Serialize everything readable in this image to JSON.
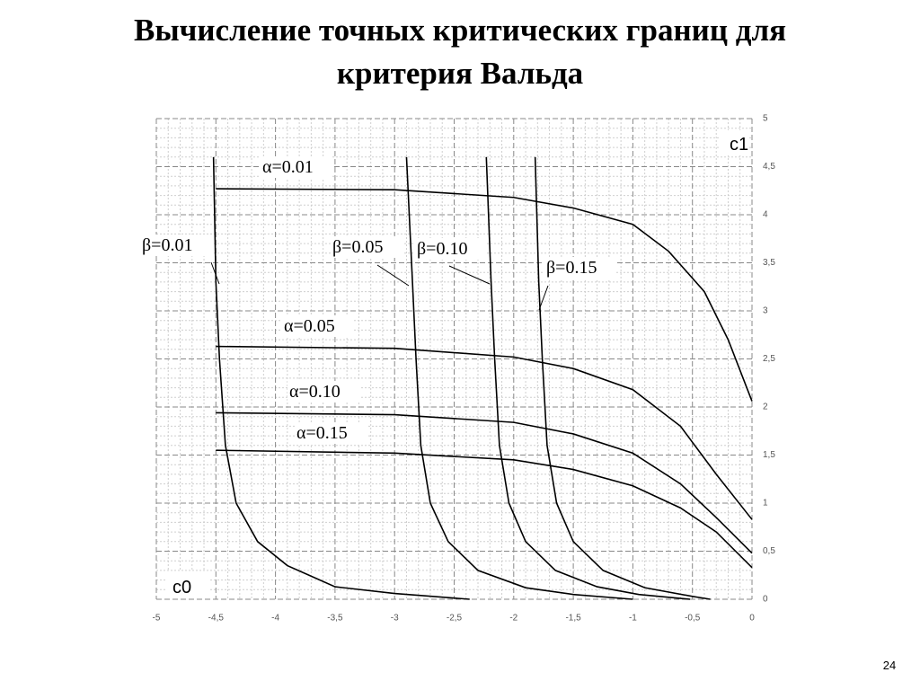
{
  "slide_title": [
    "Вычисление точных критических границ для",
    "критерия Вальда"
  ],
  "page_number": "24",
  "chart_data": {
    "type": "line",
    "xlabel": "c0",
    "ylabel": "c1",
    "xlim": [
      -5,
      0
    ],
    "ylim": [
      0,
      5
    ],
    "xticks": [
      -5,
      {
        "value": -4.5,
        "label": "-4,5"
      },
      -4,
      {
        "value": -3.5,
        "label": "-3,5"
      },
      -3,
      {
        "value": -2.5,
        "label": "-2,5"
      },
      -2,
      {
        "value": -1.5,
        "label": "-1,5"
      },
      -1,
      {
        "value": -0.5,
        "label": "-0,5"
      },
      0
    ],
    "yticks": [
      0,
      {
        "value": 0.5,
        "label": "0,5"
      },
      1,
      {
        "value": 1.5,
        "label": "1,5"
      },
      2,
      {
        "value": 2.5,
        "label": "2,5"
      },
      3,
      {
        "value": 3.5,
        "label": "3,5"
      },
      4,
      {
        "value": 4.5,
        "label": "4,5"
      },
      5
    ],
    "grid": true,
    "minor_grid": true,
    "series": [
      {
        "name": "α=0.01",
        "color": "#000000",
        "x": [
          -4.5,
          -3,
          -2,
          -1.5,
          -1,
          -0.7,
          -0.4,
          -0.2,
          0
        ],
        "values": [
          4.27,
          4.26,
          4.18,
          4.07,
          3.9,
          3.62,
          3.2,
          2.7,
          2.06
        ]
      },
      {
        "name": "α=0.05",
        "color": "#000000",
        "x": [
          -4.5,
          -3,
          -2,
          -1.5,
          -1,
          -0.6,
          -0.3,
          0
        ],
        "values": [
          2.63,
          2.61,
          2.52,
          2.4,
          2.18,
          1.8,
          1.3,
          0.83
        ]
      },
      {
        "name": "α=0.10",
        "color": "#000000",
        "x": [
          -4.5,
          -3,
          -2,
          -1.5,
          -1,
          -0.6,
          -0.3,
          0
        ],
        "values": [
          1.94,
          1.92,
          1.84,
          1.72,
          1.52,
          1.2,
          0.85,
          0.48
        ]
      },
      {
        "name": "α=0.15",
        "color": "#000000",
        "x": [
          -4.5,
          -3,
          -2,
          -1.5,
          -1,
          -0.6,
          -0.3,
          0
        ],
        "values": [
          1.55,
          1.52,
          1.45,
          1.35,
          1.18,
          0.95,
          0.7,
          0.33
        ]
      },
      {
        "name": "β=0.01",
        "color": "#000000",
        "x": [
          -4.52,
          -4.5,
          -4.47,
          -4.42,
          -4.33,
          -4.15,
          -3.9,
          -3.5,
          -3,
          -2.37
        ],
        "values": [
          4.6,
          3.3,
          2.5,
          1.6,
          1.0,
          0.6,
          0.35,
          0.13,
          0.06,
          0
        ]
      },
      {
        "name": "β=0.05",
        "color": "#000000",
        "x": [
          -2.9,
          -2.85,
          -2.82,
          -2.78,
          -2.7,
          -2.55,
          -2.3,
          -1.9,
          -1.5,
          -1.0
        ],
        "values": [
          4.6,
          3.3,
          2.5,
          1.6,
          1.0,
          0.6,
          0.3,
          0.12,
          0.05,
          0
        ]
      },
      {
        "name": "β=0.10",
        "color": "#000000",
        "x": [
          -2.23,
          -2.19,
          -2.16,
          -2.12,
          -2.04,
          -1.9,
          -1.65,
          -1.3,
          -0.95,
          -0.52
        ],
        "values": [
          4.6,
          3.3,
          2.5,
          1.6,
          1.0,
          0.6,
          0.3,
          0.13,
          0.05,
          0
        ]
      },
      {
        "name": "β=0.15",
        "color": "#000000",
        "x": [
          -1.82,
          -1.79,
          -1.76,
          -1.72,
          -1.64,
          -1.5,
          -1.25,
          -0.9,
          -0.5,
          -0.35
        ],
        "values": [
          4.6,
          3.3,
          2.5,
          1.6,
          1.0,
          0.6,
          0.3,
          0.12,
          0.03,
          0
        ]
      }
    ]
  }
}
